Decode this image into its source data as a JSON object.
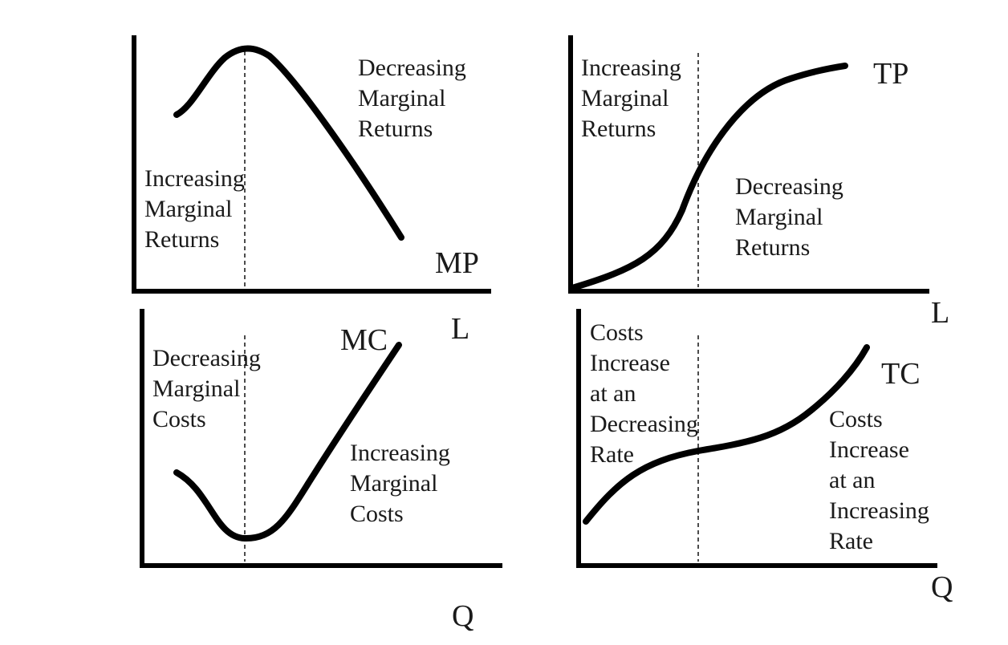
{
  "chart_data": [
    {
      "id": "mp",
      "type": "line",
      "series": [
        {
          "name": "MP"
        }
      ],
      "x_axis_label": "L",
      "annotations": [
        [
          "Increasing",
          "Marginal",
          "Returns"
        ],
        [
          "Decreasing",
          "Marginal",
          "Returns"
        ]
      ]
    },
    {
      "id": "tp",
      "type": "line",
      "series": [
        {
          "name": "TP"
        }
      ],
      "x_axis_label": "L",
      "annotations": [
        [
          "Increasing",
          "Marginal",
          "Returns"
        ],
        [
          "Decreasing",
          "Marginal",
          "Returns"
        ]
      ]
    },
    {
      "id": "mc",
      "type": "line",
      "series": [
        {
          "name": "MC"
        }
      ],
      "x_axis_label": "Q",
      "annotations": [
        [
          "Decreasing",
          "Marginal",
          "Costs"
        ],
        [
          "Increasing",
          "Marginal",
          "Costs"
        ]
      ]
    },
    {
      "id": "tc",
      "type": "line",
      "series": [
        {
          "name": "TC"
        }
      ],
      "x_axis_label": "Q",
      "annotations": [
        [
          "Costs",
          "Increase",
          "at an",
          "Decreasing",
          "Rate"
        ],
        [
          "Costs",
          "Increase",
          "at an",
          "Increasing",
          "Rate"
        ]
      ]
    }
  ]
}
